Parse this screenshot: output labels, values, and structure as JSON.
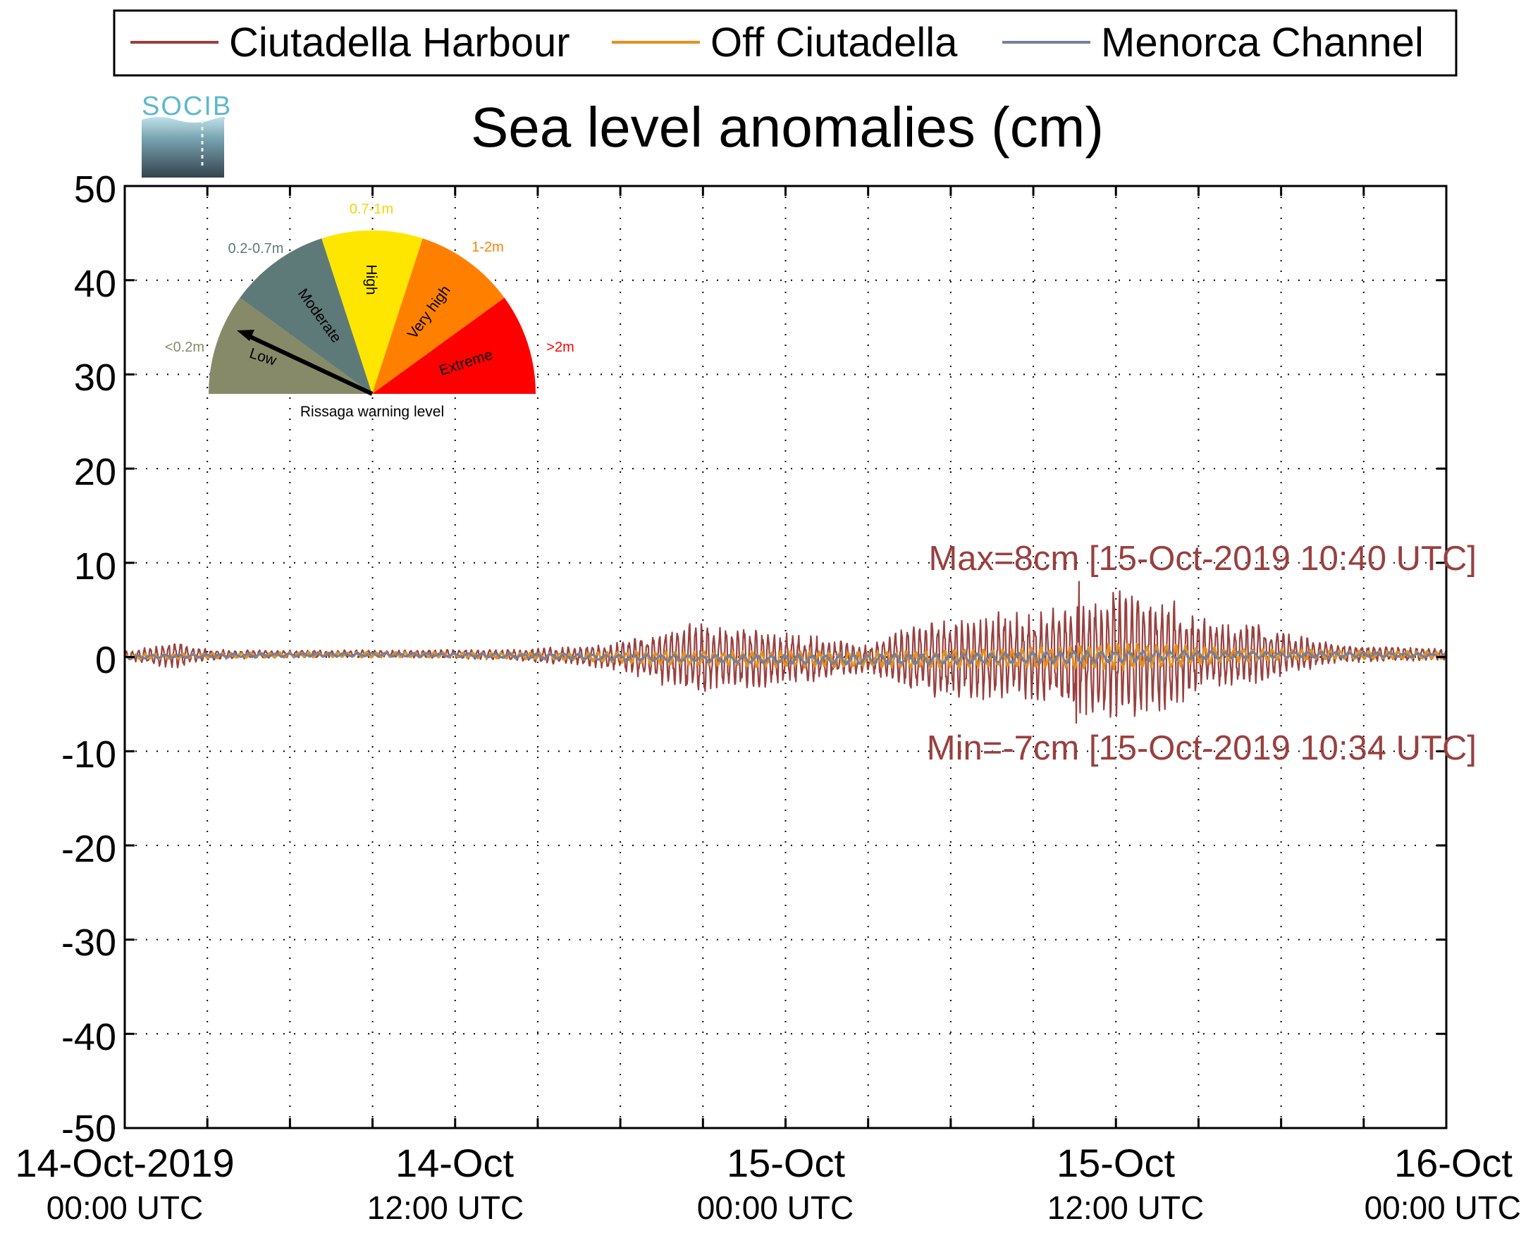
{
  "logo": {
    "text": "SOCIB"
  },
  "legend": {
    "position": "top",
    "items": [
      {
        "label": "Ciutadella Harbour",
        "color": "#99403f"
      },
      {
        "label": "Off Ciutadella",
        "color": "#e3901f"
      },
      {
        "label": "Menorca Channel",
        "color": "#75809b"
      }
    ]
  },
  "gauge": {
    "title": "Rissaga warning level",
    "needle_level": "Low",
    "sectors": [
      {
        "name": "Low",
        "range": "<0.2m",
        "color": "#868a68"
      },
      {
        "name": "Moderate",
        "range": "0.2-0.7m",
        "color": "#5e7a78"
      },
      {
        "name": "High",
        "range": "0.7-1m",
        "color": "#ffe600"
      },
      {
        "name": "Very high",
        "range": "1-2m",
        "color": "#ff8000"
      },
      {
        "name": "Extreme",
        "range": ">2m",
        "color": "#ff0000"
      }
    ]
  },
  "chart_data": {
    "type": "line",
    "title": "Sea level anomalies (cm)",
    "xlabel": "",
    "ylabel": "",
    "ylim": [
      -50,
      50
    ],
    "yticks": [
      50,
      40,
      30,
      20,
      10,
      0,
      -10,
      -20,
      -30,
      -40,
      -50
    ],
    "xlim": [
      "2019-10-14T00:00Z",
      "2019-10-16T00:00Z"
    ],
    "xtick_labels": [
      {
        "line1": "14-Oct-2019",
        "line2": "00:00 UTC"
      },
      {
        "line1": "14-Oct",
        "line2": "12:00 UTC"
      },
      {
        "line1": "15-Oct",
        "line2": "00:00 UTC"
      },
      {
        "line1": "15-Oct",
        "line2": "12:00 UTC"
      },
      {
        "line1": "16-Oct",
        "line2": "00:00 UTC"
      }
    ],
    "grid": true,
    "series": [
      {
        "name": "Ciutadella Harbour",
        "color": "#99403f",
        "x_hours": [
          0,
          1,
          2,
          3,
          4,
          6,
          8,
          10,
          12,
          14,
          16,
          17,
          18,
          19,
          20,
          21,
          22,
          23,
          24,
          25,
          26,
          27,
          28,
          29,
          30,
          31,
          32,
          33,
          34,
          35,
          36,
          37,
          38,
          39,
          40,
          41,
          42,
          44,
          46,
          48
        ],
        "envelope_cm": [
          0.5,
          1.0,
          1.5,
          0.6,
          0.5,
          0.4,
          0.4,
          0.4,
          0.5,
          0.6,
          1.0,
          1.2,
          1.6,
          2.5,
          3.5,
          4.0,
          3.5,
          3.2,
          2.8,
          2.5,
          2.0,
          1.5,
          3.0,
          4.0,
          4.5,
          4.5,
          5.0,
          4.8,
          5.5,
          6.5,
          7.5,
          7.0,
          6.0,
          4.0,
          3.5,
          3.5,
          2.5,
          1.0,
          0.8,
          0.6
        ],
        "max": {
          "value_cm": 8,
          "label": "Max=8cm [15-Oct-2019 10:40 UTC]"
        },
        "min": {
          "value_cm": -7,
          "label": "Min=-7cm [15-Oct-2019 10:34 UTC]"
        }
      },
      {
        "name": "Off Ciutadella",
        "color": "#e3901f",
        "x_hours": [
          0,
          6,
          12,
          16,
          20,
          24,
          28,
          30,
          32,
          34,
          36,
          38,
          40,
          44,
          48
        ],
        "envelope_cm": [
          0.3,
          0.3,
          0.3,
          0.4,
          0.8,
          0.9,
          0.9,
          1.0,
          1.1,
          1.2,
          1.5,
          1.3,
          0.8,
          0.5,
          0.4
        ]
      },
      {
        "name": "Menorca Channel",
        "color": "#75809b",
        "x_hours": [
          0,
          6,
          12,
          16,
          20,
          24,
          28,
          32,
          36,
          40,
          44,
          48
        ],
        "envelope_cm": [
          0.2,
          0.2,
          0.2,
          0.3,
          0.4,
          0.5,
          0.6,
          0.6,
          0.7,
          0.4,
          0.3,
          0.2
        ]
      }
    ]
  }
}
